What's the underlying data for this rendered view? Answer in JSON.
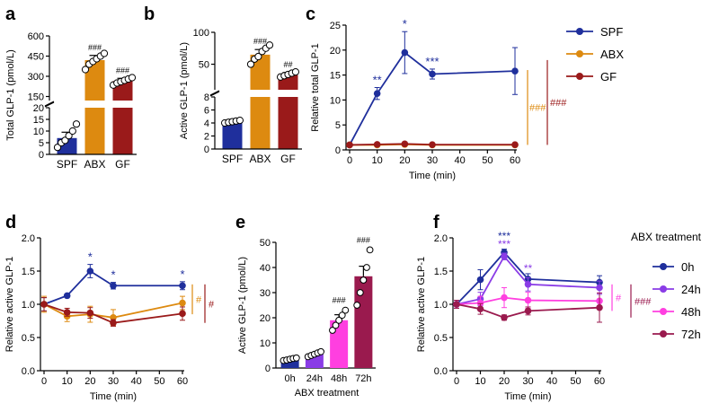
{
  "colors": {
    "spf": "#1f2f9c",
    "abx": "#dd8a10",
    "gf": "#9a1a1a",
    "h0": "#1f2f9c",
    "h24": "#8a3ce6",
    "h48": "#ff3fe0",
    "h72": "#9a1a4e",
    "axis": "#000000"
  },
  "chart_data": [
    {
      "panel": "a",
      "type": "bar",
      "title": "",
      "ylabel": "Total GLP-1 (pmol/L)",
      "categories": [
        "SPF",
        "ABX",
        "GF"
      ],
      "values": [
        7,
        420,
        265
      ],
      "errors": [
        2.5,
        35,
        20
      ],
      "points": [
        [
          3,
          5,
          6,
          8,
          10,
          13
        ],
        [
          350,
          390,
          410,
          430,
          450,
          470
        ],
        [
          235,
          250,
          260,
          270,
          280,
          290
        ]
      ],
      "ylim_lower": [
        0,
        20
      ],
      "yticks_lower": [
        0,
        5,
        10,
        15,
        20
      ],
      "ylim_upper": [
        120,
        600
      ],
      "yticks_upper": [
        150,
        300,
        450,
        600
      ],
      "annotations": [
        "",
        "###",
        "###"
      ]
    },
    {
      "panel": "b",
      "type": "bar",
      "title": "",
      "ylabel": "Active GLP-1 (pmol/L)",
      "categories": [
        "SPF",
        "ABX",
        "GF"
      ],
      "values": [
        4.2,
        65,
        33
      ],
      "errors": [
        0.15,
        8,
        4
      ],
      "points": [
        [
          4.0,
          4.1,
          4.2,
          4.3,
          4.4
        ],
        [
          50,
          58,
          62,
          70,
          75,
          80
        ],
        [
          30,
          32,
          34,
          36,
          38
        ]
      ],
      "ylim_lower": [
        0,
        8
      ],
      "yticks_lower": [
        0,
        2,
        4,
        6,
        8
      ],
      "ylim_upper": [
        10,
        100
      ],
      "yticks_upper": [
        50,
        100
      ],
      "annotations": [
        "",
        "###",
        "##"
      ]
    },
    {
      "panel": "c",
      "type": "line",
      "title": "",
      "xlabel": "Time (min)",
      "ylabel": "Relative total GLP-1",
      "x": [
        0,
        10,
        20,
        30,
        60
      ],
      "xticks": [
        0,
        10,
        20,
        30,
        40,
        50,
        60
      ],
      "ylim": [
        0,
        25
      ],
      "yticks": [
        0,
        5,
        10,
        15,
        20,
        25
      ],
      "series": [
        {
          "name": "SPF",
          "key": "spf",
          "values": [
            1,
            11.3,
            19.5,
            15.2,
            15.8
          ],
          "errors": [
            0,
            1.2,
            4.2,
            1.0,
            4.7
          ],
          "stars": [
            "",
            "**",
            "*",
            "***",
            ""
          ]
        },
        {
          "name": "ABX",
          "key": "abx",
          "values": [
            1,
            1.0,
            1.1,
            1.0,
            1.0
          ],
          "errors": [
            0,
            0.1,
            0.1,
            0.1,
            0.1
          ],
          "stars": [
            "",
            "",
            "",
            "",
            ""
          ]
        },
        {
          "name": "GF",
          "key": "gf",
          "values": [
            1,
            1.1,
            1.2,
            1.05,
            1.05
          ],
          "errors": [
            0,
            0.1,
            0.1,
            0.1,
            0.1
          ],
          "stars": [
            "",
            "",
            "",
            "",
            ""
          ]
        }
      ],
      "legend": {
        "position": "right",
        "items": [
          "SPF",
          "ABX",
          "GF"
        ]
      },
      "brackets": [
        {
          "label": "###",
          "key": "abx",
          "from": 1,
          "to": 16
        },
        {
          "label": "###",
          "key": "gf",
          "from": 1,
          "to": 18
        }
      ]
    },
    {
      "panel": "d",
      "type": "line",
      "title": "",
      "xlabel": "Time (min)",
      "ylabel": "Relative active GLP-1",
      "x": [
        0,
        10,
        20,
        30,
        60
      ],
      "xticks": [
        0,
        10,
        20,
        30,
        40,
        50,
        60
      ],
      "ylim": [
        0,
        2.0
      ],
      "yticks": [
        0.0,
        0.5,
        1.0,
        1.5,
        2.0
      ],
      "series": [
        {
          "name": "SPF",
          "key": "spf",
          "values": [
            1.0,
            1.13,
            1.5,
            1.28,
            1.28
          ],
          "errors": [
            0.1,
            0.02,
            0.1,
            0.05,
            0.06
          ],
          "stars": [
            "",
            "",
            "*",
            "*",
            "*"
          ]
        },
        {
          "name": "ABX",
          "key": "abx",
          "values": [
            1.0,
            0.82,
            0.85,
            0.8,
            1.02
          ],
          "errors": [
            0.12,
            0.08,
            0.12,
            0.12,
            0.1
          ],
          "stars": [
            "",
            "",
            "",
            "",
            ""
          ]
        },
        {
          "name": "GF",
          "key": "gf",
          "values": [
            1.0,
            0.88,
            0.87,
            0.72,
            0.86
          ],
          "errors": [
            0.1,
            0.06,
            0.08,
            0.05,
            0.1
          ],
          "stars": [
            "",
            "",
            "",
            "",
            ""
          ]
        }
      ],
      "brackets": [
        {
          "label": "#",
          "key": "abx",
          "from": 0.85,
          "to": 1.3
        },
        {
          "label": "#",
          "key": "gf",
          "from": 0.72,
          "to": 1.3
        }
      ]
    },
    {
      "panel": "e",
      "type": "bar",
      "title": "",
      "xlabel": "ABX treatment",
      "ylabel": "Active GLP-1 (pmol/L)",
      "categories": [
        "0h",
        "24h",
        "48h",
        "72h"
      ],
      "values": [
        3.5,
        5.5,
        19,
        36.5
      ],
      "errors": [
        0.4,
        0.6,
        2.2,
        4
      ],
      "points": [
        [
          3.0,
          3.2,
          3.5,
          3.8,
          4.0
        ],
        [
          4.5,
          5.0,
          5.5,
          6.0,
          6.5
        ],
        [
          15,
          17,
          19,
          21,
          23
        ],
        [
          25,
          30,
          35,
          40,
          47
        ]
      ],
      "ylim": [
        0,
        50
      ],
      "yticks": [
        0,
        10,
        20,
        30,
        40,
        50
      ],
      "annotations": [
        "",
        "",
        "###",
        "###"
      ]
    },
    {
      "panel": "f",
      "type": "line",
      "title": "",
      "xlabel": "Time (min)",
      "ylabel": "Relative active GLP-1",
      "x": [
        0,
        10,
        20,
        30,
        60
      ],
      "xticks": [
        0,
        10,
        20,
        30,
        40,
        50,
        60
      ],
      "ylim": [
        0,
        2.0
      ],
      "yticks": [
        0.0,
        0.5,
        1.0,
        1.5,
        2.0
      ],
      "series": [
        {
          "name": "0h",
          "key": "h0",
          "values": [
            1.0,
            1.37,
            1.78,
            1.38,
            1.33
          ],
          "errors": [
            0.06,
            0.15,
            0.05,
            0.08,
            0.1
          ],
          "stars": [
            "",
            "",
            "***",
            "",
            ""
          ]
        },
        {
          "name": "24h",
          "key": "h24",
          "values": [
            1.0,
            1.08,
            1.72,
            1.3,
            1.25
          ],
          "errors": [
            0.06,
            0.1,
            0.05,
            0.1,
            0.1
          ],
          "stars": [
            "",
            "",
            "***",
            "**",
            ""
          ]
        },
        {
          "name": "48h",
          "key": "h48",
          "values": [
            1.0,
            1.02,
            1.1,
            1.06,
            1.05
          ],
          "errors": [
            0.06,
            0.1,
            0.15,
            0.12,
            0.12
          ],
          "stars": [
            "",
            "",
            "",
            "",
            ""
          ]
        },
        {
          "name": "72h",
          "key": "h72",
          "values": [
            1.0,
            0.93,
            0.8,
            0.9,
            0.95
          ],
          "errors": [
            0.06,
            0.08,
            0.04,
            0.06,
            0.22
          ],
          "stars": [
            "",
            "",
            "",
            "",
            ""
          ]
        }
      ],
      "legend": {
        "position": "right",
        "title": "ABX treatment",
        "items": [
          "0h",
          "24h",
          "48h",
          "72h"
        ]
      },
      "brackets": [
        {
          "label": "#",
          "key": "h48",
          "from": 0.9,
          "to": 1.3
        },
        {
          "label": "###",
          "key": "h72",
          "from": 0.8,
          "to": 1.3
        }
      ]
    }
  ],
  "panel_labels": [
    "a",
    "b",
    "c",
    "d",
    "e",
    "f"
  ],
  "f_star_colors": {
    "***_top": "h0",
    "***_bottom": "h24",
    "**": "h24"
  }
}
